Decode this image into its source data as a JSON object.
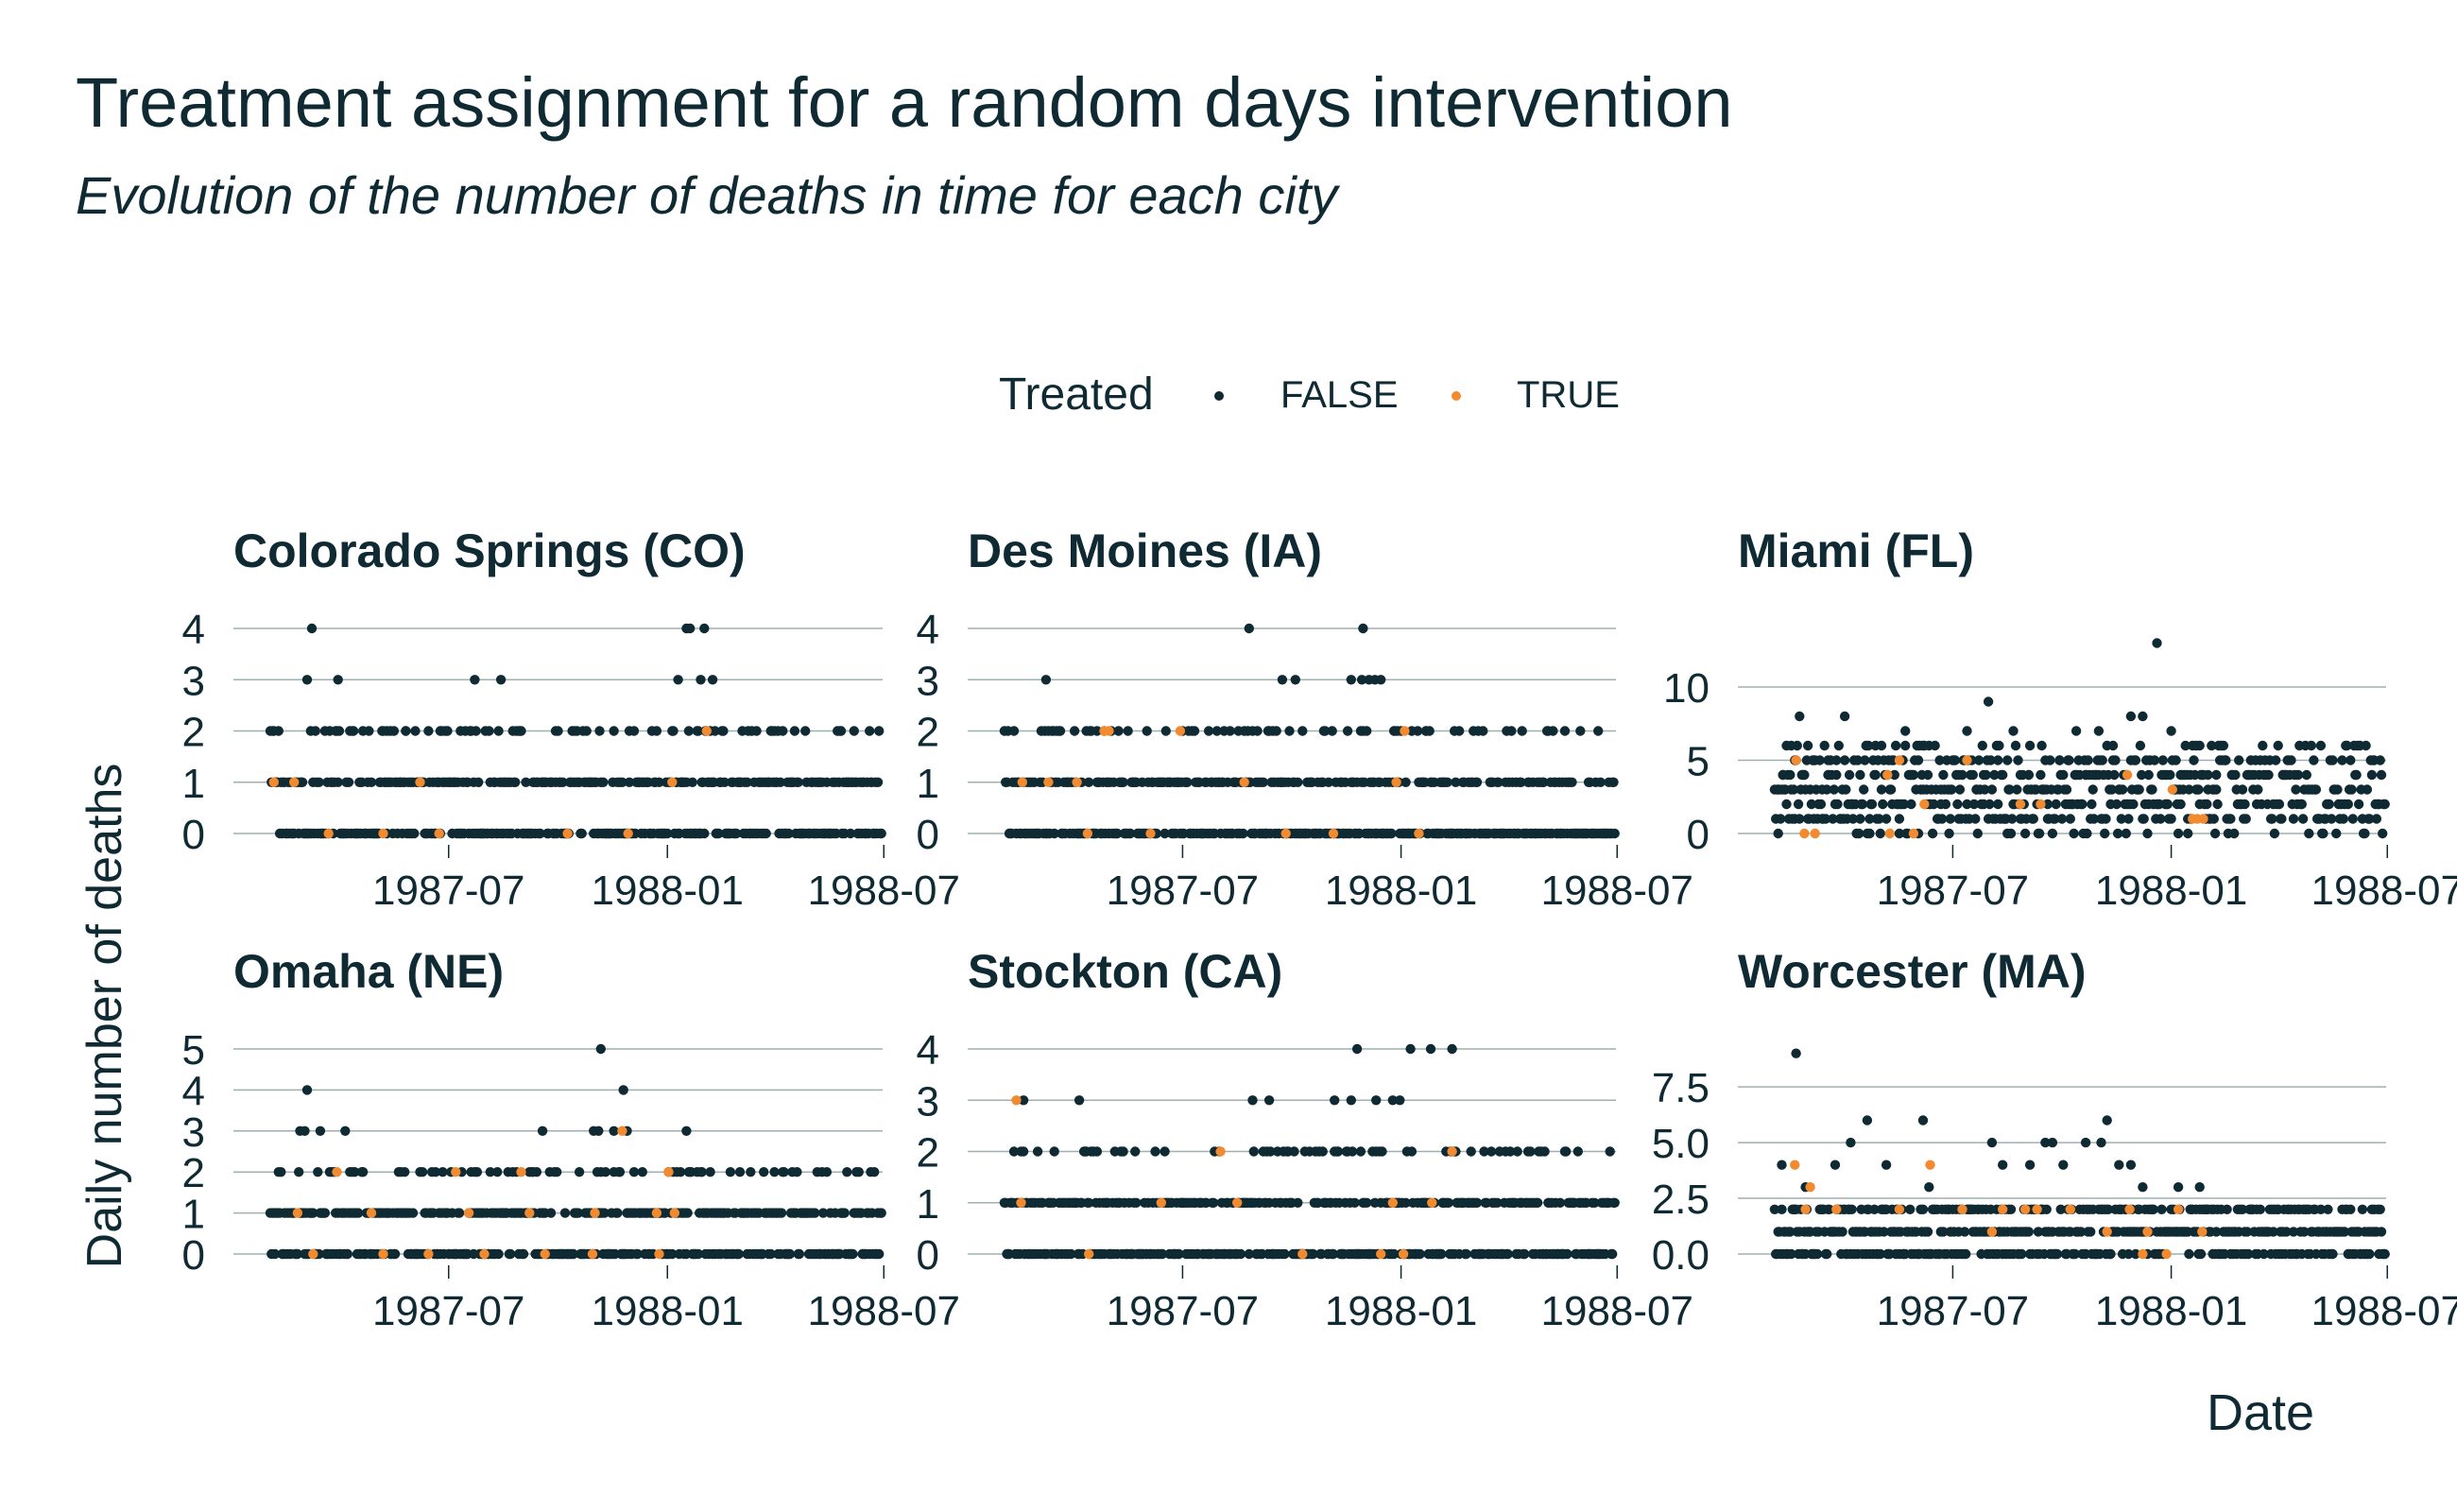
{
  "title": "Treatment assignment for a random days intervention",
  "subtitle": "Evolution of the number of deaths in time for each city",
  "chart_data": {
    "type": "scatter",
    "facet": "small-multiples",
    "xlabel": "Date",
    "ylabel": "Daily number of deaths",
    "legend": {
      "title": "Treated",
      "position": "top-center",
      "entries": [
        {
          "label": "FALSE",
          "color": "#0f2a33"
        },
        {
          "label": "TRUE",
          "color": "#f28a30"
        }
      ]
    },
    "x_tick_labels": [
      "1987-07",
      "1988-01",
      "1988-07"
    ],
    "x_range": [
      "1987-01-01",
      "1988-07-01"
    ],
    "panels": [
      {
        "name": "Colorado Springs (CO)",
        "ylim": [
          0,
          4
        ],
        "y_ticks": [
          0,
          1,
          2,
          3,
          4
        ],
        "y_tick_labels": [
          "0",
          "1",
          "2",
          "3",
          "4"
        ],
        "false_points": [
          [
            35,
            4
          ],
          [
            365,
            4
          ],
          [
            350,
            4
          ],
          [
            353,
            4
          ],
          [
            31,
            3
          ],
          [
            57,
            3
          ],
          [
            172,
            3
          ],
          [
            194,
            3
          ],
          [
            343,
            3
          ],
          [
            362,
            3
          ],
          [
            372,
            3
          ],
          [
            302,
            2
          ],
          [
            360,
            2
          ],
          [
            98,
            2
          ],
          [
            114,
            2
          ],
          [
            143,
            2
          ],
          [
            160,
            2
          ],
          [
            240,
            2
          ]
        ],
        "true_points": [
          [
            367,
            2
          ],
          [
            3,
            1
          ],
          [
            20,
            1
          ],
          [
            126,
            1
          ],
          [
            338,
            1
          ],
          [
            49,
            0
          ],
          [
            95,
            0
          ],
          [
            142,
            0
          ],
          [
            250,
            0
          ],
          [
            301,
            0
          ]
        ]
      },
      {
        "name": "Des Moines (IA)",
        "ylim": [
          0,
          4
        ],
        "y_ticks": [
          0,
          1,
          2,
          3,
          4
        ],
        "y_tick_labels": [
          "0",
          "1",
          "2",
          "3",
          "4"
        ],
        "false_points": [
          [
            35,
            3
          ],
          [
            206,
            4
          ],
          [
            302,
            4
          ],
          [
            234,
            3
          ],
          [
            245,
            3
          ],
          [
            292,
            3
          ],
          [
            301,
            3
          ],
          [
            307,
            3
          ],
          [
            312,
            3
          ],
          [
            317,
            3
          ],
          [
            40,
            2
          ],
          [
            78,
            2
          ],
          [
            150,
            2
          ],
          [
            270,
            2
          ],
          [
            355,
            2
          ]
        ],
        "true_points": [
          [
            84,
            2
          ],
          [
            88,
            2
          ],
          [
            148,
            2
          ],
          [
            337,
            2
          ],
          [
            15,
            1
          ],
          [
            37,
            1
          ],
          [
            61,
            1
          ],
          [
            202,
            1
          ],
          [
            330,
            1
          ],
          [
            70,
            0
          ],
          [
            123,
            0
          ],
          [
            237,
            0
          ],
          [
            277,
            0
          ],
          [
            349,
            0
          ]
        ]
      },
      {
        "name": "Miami (FL)",
        "ylim": [
          0,
          14
        ],
        "y_ticks": [
          0,
          5,
          10
        ],
        "y_tick_labels": [
          "0",
          "5",
          "10"
        ],
        "false_points": [
          [
            21,
            8
          ],
          [
            59,
            8
          ],
          [
            300,
            8
          ],
          [
            310,
            8
          ],
          [
            322,
            13
          ],
          [
            180,
            9
          ],
          [
            162,
            7
          ],
          [
            201,
            7
          ],
          [
            254,
            7
          ],
          [
            273,
            7
          ],
          [
            285,
            6
          ],
          [
            334,
            7
          ],
          [
            355,
            6
          ],
          [
            358,
            6
          ],
          [
            110,
            7
          ],
          [
            130,
            6
          ],
          [
            7,
            4
          ],
          [
            10,
            2
          ],
          [
            14,
            3
          ],
          [
            17,
            5
          ],
          [
            28,
            6
          ],
          [
            40,
            3
          ],
          [
            52,
            5
          ],
          [
            66,
            2
          ],
          [
            72,
            4
          ],
          [
            80,
            1
          ],
          [
            90,
            3
          ],
          [
            99,
            2
          ],
          [
            115,
            4
          ],
          [
            121,
            0
          ],
          [
            140,
            2
          ],
          [
            148,
            1
          ],
          [
            170,
            3
          ],
          [
            188,
            2
          ],
          [
            196,
            0
          ],
          [
            214,
            4
          ],
          [
            225,
            3
          ],
          [
            230,
            1
          ],
          [
            248,
            2
          ],
          [
            262,
            4
          ],
          [
            276,
            1
          ],
          [
            290,
            3
          ],
          [
            315,
            2
          ],
          [
            330,
            4
          ],
          [
            342,
            2
          ],
          [
            348,
            0
          ],
          [
            365,
            3
          ],
          [
            370,
            1
          ],
          [
            372,
            4
          ],
          [
            3,
            0
          ],
          [
            33,
            1
          ],
          [
            45,
            5
          ],
          [
            85,
            4
          ],
          [
            105,
            1
          ],
          [
            125,
            3
          ],
          [
            155,
            4
          ],
          [
            176,
            2
          ],
          [
            207,
            1
          ],
          [
            240,
            5
          ],
          [
            268,
            3
          ],
          [
            296,
            4
          ],
          [
            338,
            3
          ]
        ],
        "true_points": [
          [
            18,
            5
          ],
          [
            25,
            0
          ],
          [
            34,
            0
          ],
          [
            95,
            4
          ],
          [
            97,
            0
          ],
          [
            105,
            5
          ],
          [
            117,
            0
          ],
          [
            126,
            2
          ],
          [
            162,
            5
          ],
          [
            207,
            2
          ],
          [
            224,
            2
          ],
          [
            297,
            4
          ],
          [
            335,
            3
          ],
          [
            352,
            1
          ],
          [
            356,
            1
          ],
          [
            361,
            1
          ]
        ]
      },
      {
        "name": "Omaha (NE)",
        "ylim": [
          0,
          5
        ],
        "y_ticks": [
          0,
          1,
          2,
          3,
          4,
          5
        ],
        "y_tick_labels": [
          "0",
          "1",
          "2",
          "3",
          "4",
          "5"
        ],
        "false_points": [
          [
            31,
            4
          ],
          [
            278,
            5
          ],
          [
            297,
            4
          ],
          [
            25,
            3
          ],
          [
            29,
            3
          ],
          [
            42,
            3
          ],
          [
            63,
            3
          ],
          [
            229,
            3
          ],
          [
            272,
            3
          ],
          [
            276,
            3
          ],
          [
            289,
            3
          ],
          [
            300,
            3
          ],
          [
            350,
            3
          ]
        ],
        "true_points": [
          [
            296,
            3
          ],
          [
            56,
            2
          ],
          [
            156,
            2
          ],
          [
            211,
            2
          ],
          [
            335,
            2
          ],
          [
            23,
            1
          ],
          [
            85,
            1
          ],
          [
            167,
            1
          ],
          [
            218,
            1
          ],
          [
            273,
            1
          ],
          [
            325,
            1
          ],
          [
            340,
            1
          ],
          [
            36,
            0
          ],
          [
            95,
            0
          ],
          [
            133,
            0
          ],
          [
            180,
            0
          ],
          [
            231,
            0
          ],
          [
            271,
            0
          ],
          [
            327,
            0
          ]
        ]
      },
      {
        "name": "Stockton (CA)",
        "ylim": [
          0,
          4
        ],
        "y_ticks": [
          0,
          1,
          2,
          3,
          4
        ],
        "y_tick_labels": [
          "0",
          "1",
          "2",
          "3",
          "4"
        ],
        "false_points": [
          [
            16,
            3
          ],
          [
            63,
            3
          ],
          [
            209,
            3
          ],
          [
            223,
            3
          ],
          [
            278,
            3
          ],
          [
            292,
            3
          ],
          [
            313,
            3
          ],
          [
            327,
            3
          ],
          [
            333,
            3
          ],
          [
            297,
            4
          ],
          [
            342,
            4
          ],
          [
            359,
            4
          ],
          [
            377,
            4
          ]
        ],
        "true_points": [
          [
            10,
            3
          ],
          [
            377,
            2
          ],
          [
            182,
            2
          ],
          [
            14,
            1
          ],
          [
            132,
            1
          ],
          [
            196,
            1
          ],
          [
            327,
            1
          ],
          [
            360,
            1
          ],
          [
            71,
            0
          ],
          [
            251,
            0
          ],
          [
            317,
            0
          ],
          [
            336,
            0
          ]
        ]
      },
      {
        "name": "Worcester (MA)",
        "ylim": [
          0,
          9.2
        ],
        "y_ticks": [
          0,
          2.5,
          5,
          7.5
        ],
        "y_tick_labels": [
          "0.0",
          "2.5",
          "5.0",
          "7.5"
        ],
        "false_points": [
          [
            18,
            9
          ],
          [
            6,
            4
          ],
          [
            26,
            3
          ],
          [
            51,
            4
          ],
          [
            64,
            5
          ],
          [
            78,
            6
          ],
          [
            94,
            4
          ],
          [
            125,
            6
          ],
          [
            130,
            3
          ],
          [
            183,
            5
          ],
          [
            192,
            4
          ],
          [
            215,
            4
          ],
          [
            228,
            5
          ],
          [
            234,
            5
          ],
          [
            243,
            4
          ],
          [
            262,
            5
          ],
          [
            275,
            5
          ],
          [
            280,
            6
          ],
          [
            290,
            4
          ],
          [
            300,
            4
          ],
          [
            310,
            3
          ],
          [
            340,
            3
          ],
          [
            358,
            3
          ]
        ],
        "true_points": [
          [
            17,
            4
          ],
          [
            30,
            3
          ],
          [
            26,
            2
          ],
          [
            52,
            2
          ],
          [
            105,
            2
          ],
          [
            131,
            4
          ],
          [
            158,
            2
          ],
          [
            183,
            1
          ],
          [
            192,
            2
          ],
          [
            211,
            2
          ],
          [
            221,
            2
          ],
          [
            249,
            2
          ],
          [
            280,
            1
          ],
          [
            299,
            2
          ],
          [
            310,
            0
          ],
          [
            314,
            1
          ],
          [
            330,
            0
          ],
          [
            340,
            2
          ],
          [
            360,
            1
          ]
        ]
      }
    ]
  }
}
